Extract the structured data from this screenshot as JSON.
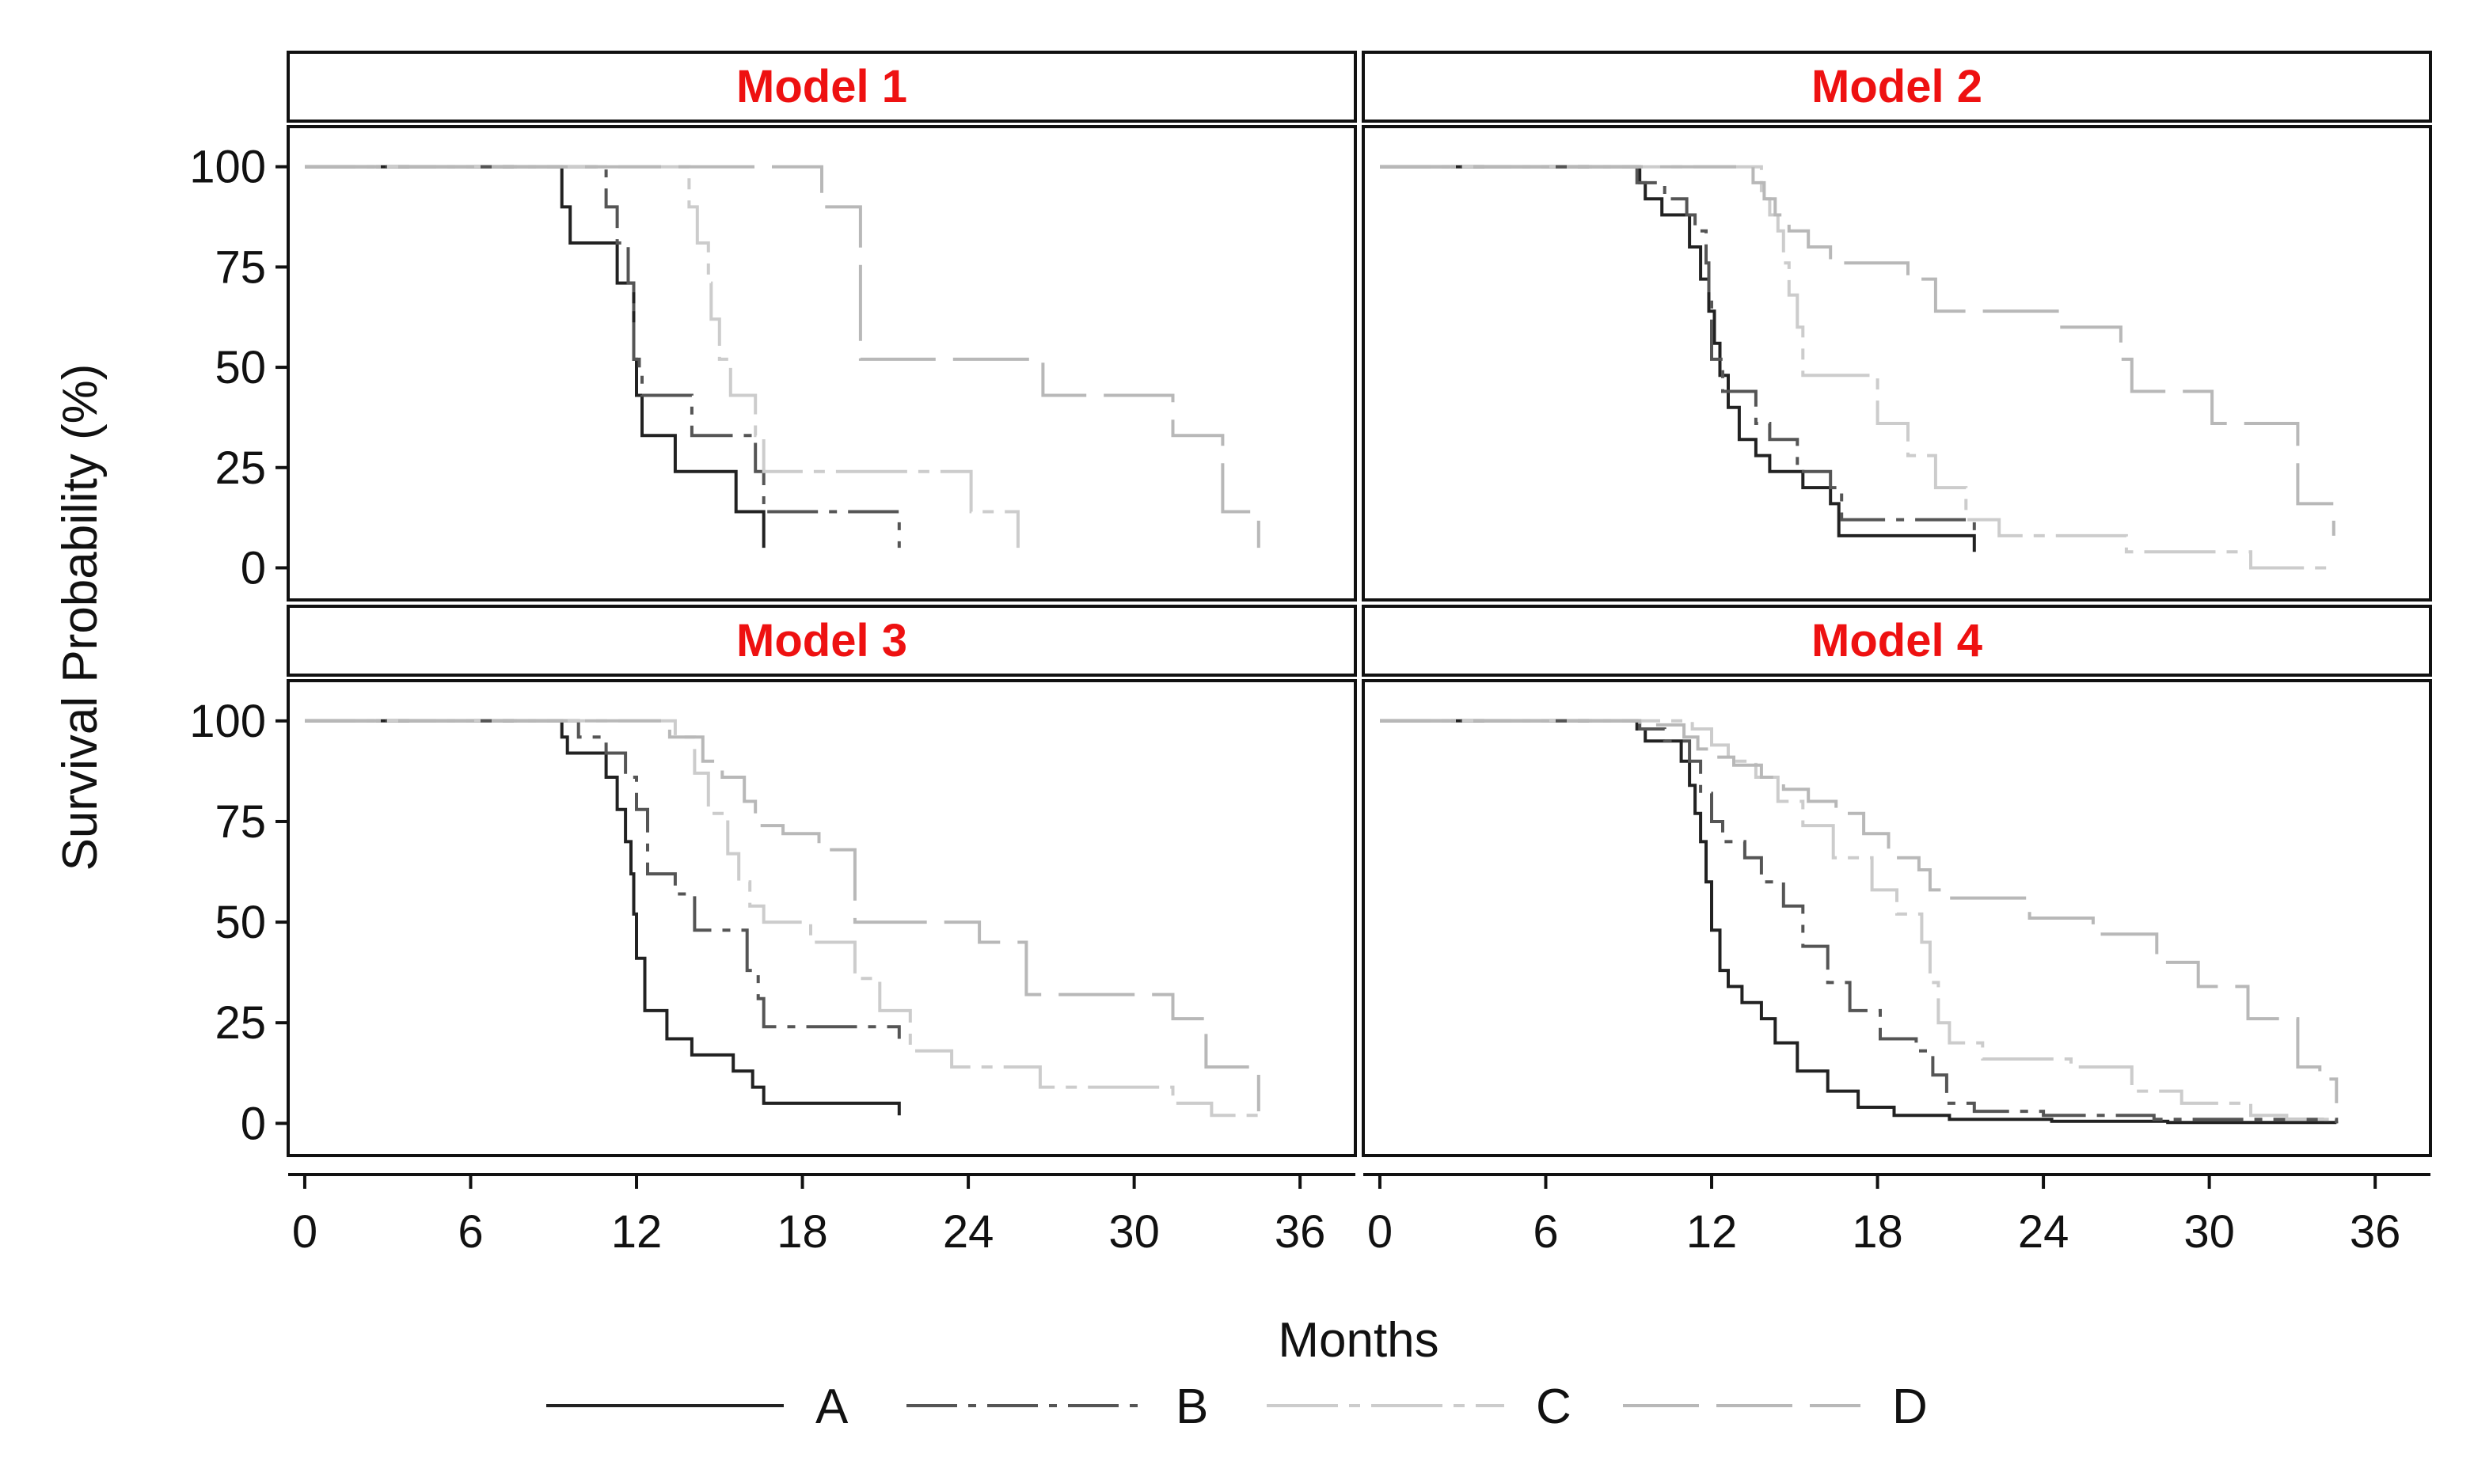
{
  "chart_data": {
    "type": "line",
    "subtype": "kaplan-meier step curves, 2x2 facet grid",
    "xlabel": "Months",
    "ylabel": "Survival Probability (%)",
    "x_ticks": [
      0,
      6,
      12,
      18,
      24,
      30,
      36
    ],
    "y_ticks": [
      0,
      25,
      50,
      75,
      100
    ],
    "xlim": [
      -0.6,
      38.0
    ],
    "ylim": [
      -8,
      110
    ],
    "grid": false,
    "legend_position": "bottom",
    "legend": [
      {
        "name": "A",
        "color": "#222222",
        "dash": "none"
      },
      {
        "name": "B",
        "color": "#555555",
        "dash": "dash-dot"
      },
      {
        "name": "C",
        "color": "#cccccc",
        "dash": "long-dash-dot"
      },
      {
        "name": "D",
        "color": "#b8b8b8",
        "dash": "long-dash"
      }
    ],
    "panels": [
      {
        "title": "Model 1",
        "series": [
          {
            "name": "A",
            "x": [
              0,
              9.3,
              9.6,
              11.3,
              11.9,
              12.0,
              12.2,
              13.4,
              15.6,
              16.6
            ],
            "y": [
              100,
              90,
              81,
              71,
              52,
              43,
              33,
              24,
              14,
              5
            ]
          },
          {
            "name": "B",
            "x": [
              0,
              10.9,
              11.3,
              11.7,
              11.9,
              12.1,
              12.2,
              14.0,
              16.3,
              16.6,
              21.5
            ],
            "y": [
              100,
              90,
              81,
              71,
              52,
              48,
              43,
              33,
              24,
              14,
              5
            ]
          },
          {
            "name": "C",
            "x": [
              0,
              13.9,
              14.2,
              14.6,
              14.7,
              15.0,
              15.4,
              16.3,
              16.6,
              18.0,
              24.1,
              25.8
            ],
            "y": [
              100,
              90,
              81,
              71,
              62,
              52,
              43,
              33,
              24,
              24,
              14,
              5
            ]
          },
          {
            "name": "D",
            "x": [
              0,
              18.7,
              20.1,
              26.7,
              31.4,
              33.2,
              34.5
            ],
            "y": [
              100,
              90,
              52,
              43,
              33,
              14,
              5
            ]
          }
        ]
      },
      {
        "title": "Model 2",
        "series": [
          {
            "name": "A",
            "x": [
              0,
              9.4,
              9.6,
              10.2,
              11.2,
              11.6,
              11.9,
              12.1,
              12.3,
              12.6,
              13.0,
              13.6,
              14.1,
              15.3,
              16.3,
              16.6,
              21.5
            ],
            "y": [
              100,
              96,
              92,
              88,
              80,
              72,
              64,
              56,
              48,
              40,
              32,
              28,
              24,
              20,
              16,
              8,
              4
            ]
          },
          {
            "name": "B",
            "x": [
              0,
              9.3,
              10.3,
              11.1,
              11.4,
              11.8,
              11.9,
              12.0,
              12.4,
              13.6,
              14.1,
              15.1,
              16.3,
              16.7,
              21.5
            ],
            "y": [
              100,
              96,
              92,
              88,
              84,
              76,
              68,
              52,
              44,
              36,
              32,
              24,
              20,
              12,
              8
            ]
          },
          {
            "name": "C",
            "x": [
              0,
              13.8,
              14.1,
              14.4,
              14.6,
              14.8,
              15.1,
              15.3,
              18.0,
              19.1,
              20.1,
              21.2,
              22.4,
              23.3,
              27.0,
              31.5,
              34.5
            ],
            "y": [
              100,
              92,
              88,
              84,
              76,
              68,
              60,
              48,
              36,
              28,
              20,
              12,
              8,
              8,
              4,
              0,
              0
            ]
          },
          {
            "name": "D",
            "x": [
              0,
              13.5,
              13.9,
              14.3,
              14.8,
              15.5,
              16.3,
              19.1,
              20.1,
              24.6,
              26.8,
              27.2,
              30.1,
              33.2,
              34.5
            ],
            "y": [
              100,
              96,
              92,
              88,
              84,
              80,
              76,
              72,
              64,
              60,
              52,
              44,
              36,
              16,
              8
            ]
          }
        ]
      },
      {
        "title": "Model 3",
        "series": [
          {
            "name": "A",
            "x": [
              0,
              9.3,
              9.5,
              10.9,
              11.3,
              11.6,
              11.8,
              11.9,
              12.0,
              12.3,
              13.1,
              14.0,
              15.5,
              16.2,
              16.6,
              21.5
            ],
            "y": [
              100,
              96,
              92,
              86,
              78,
              70,
              62,
              52,
              41,
              28,
              21,
              17,
              13,
              9,
              5,
              2
            ]
          },
          {
            "name": "B",
            "x": [
              0,
              9.9,
              10.9,
              11.6,
              12.0,
              12.4,
              13.4,
              14.1,
              16.0,
              16.4,
              16.6,
              21.5
            ],
            "y": [
              100,
              96,
              92,
              86,
              78,
              62,
              57,
              48,
              38,
              31,
              24,
              21
            ]
          },
          {
            "name": "C",
            "x": [
              0,
              13.4,
              14.1,
              14.6,
              15.3,
              15.7,
              16.1,
              16.6,
              18.3,
              19.9,
              20.8,
              21.9,
              23.4,
              26.6,
              31.4,
              32.8,
              34.5
            ],
            "y": [
              100,
              96,
              87,
              77,
              67,
              60,
              54,
              50,
              45,
              36,
              28,
              18,
              14,
              9,
              5,
              2,
              0
            ]
          },
          {
            "name": "D",
            "x": [
              0,
              13.2,
              14.4,
              15.1,
              15.9,
              16.3,
              17.3,
              18.6,
              19.9,
              24.4,
              26.1,
              31.4,
              32.6,
              34.5
            ],
            "y": [
              100,
              96,
              90,
              86,
              80,
              74,
              72,
              68,
              50,
              45,
              32,
              26,
              14,
              3
            ]
          }
        ]
      },
      {
        "title": "Model 4",
        "series": [
          {
            "name": "A",
            "x": [
              0,
              9.3,
              9.6,
              10.9,
              11.2,
              11.4,
              11.6,
              11.8,
              12.0,
              12.3,
              12.6,
              13.1,
              13.8,
              14.3,
              15.1,
              16.2,
              17.3,
              18.6,
              20.6,
              24.3,
              28.5,
              34.6
            ],
            "y": [
              100,
              98,
              95,
              90,
              84,
              77,
              70,
              60,
              48,
              38,
              34,
              30,
              26,
              20,
              13,
              8,
              4,
              2,
              1,
              0.5,
              0.2,
              0
            ]
          },
          {
            "name": "B",
            "x": [
              0,
              9.4,
              10.3,
              11.2,
              11.6,
              12.0,
              12.4,
              13.2,
              13.8,
              14.6,
              15.3,
              16.2,
              17.0,
              18.1,
              19.4,
              20.0,
              20.5,
              21.5,
              24.0,
              28.0,
              34.6
            ],
            "y": [
              100,
              98,
              95,
              90,
              82,
              75,
              70,
              66,
              60,
              54,
              44,
              35,
              28,
              21,
              18,
              12,
              5,
              3,
              2,
              1,
              0
            ]
          },
          {
            "name": "C",
            "x": [
              0,
              11.3,
              12.0,
              12.6,
              13.6,
              14.4,
              15.3,
              16.4,
              17.8,
              18.7,
              19.6,
              19.9,
              20.2,
              20.6,
              21.8,
              25.0,
              27.2,
              29.0,
              31.5,
              32.8,
              34.5
            ],
            "y": [
              100,
              98,
              94,
              90,
              86,
              80,
              74,
              66,
              58,
              52,
              45,
              35,
              25,
              20,
              16,
              14,
              8,
              5,
              2,
              1,
              0
            ]
          },
          {
            "name": "D",
            "x": [
              0,
              9.4,
              11.0,
              11.5,
              12.0,
              12.8,
              13.8,
              14.6,
              15.5,
              16.5,
              17.5,
              18.4,
              19.5,
              19.9,
              20.6,
              23.5,
              25.8,
              28.1,
              29.6,
              31.4,
              33.2,
              34.0,
              34.6
            ],
            "y": [
              100,
              99,
              96,
              93,
              91,
              89,
              86,
              83,
              80,
              77,
              72,
              66,
              63,
              58,
              56,
              51,
              47,
              40,
              34,
              26,
              14,
              11,
              5
            ]
          }
        ]
      }
    ]
  }
}
